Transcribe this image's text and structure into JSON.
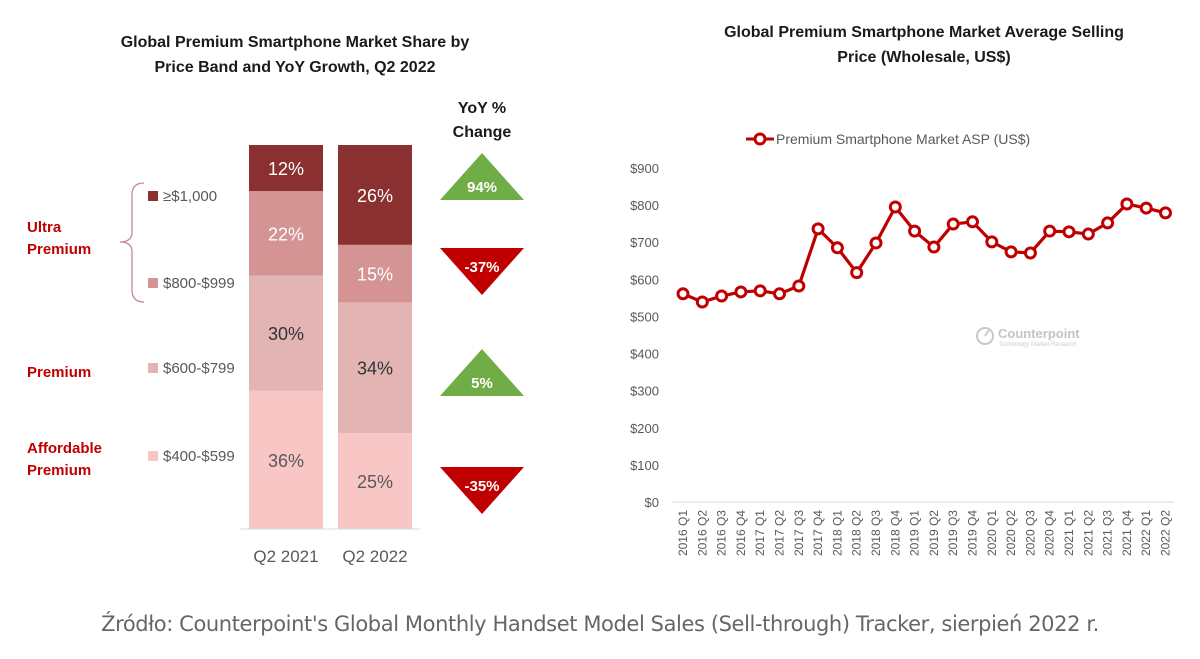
{
  "chart_data": [
    {
      "type": "bar",
      "stacked": true,
      "title": "Global Premium Smartphone Market Share by Price Band and YoY Growth, Q2 2022",
      "title_lines": [
        "Global Premium Smartphone Market Share by",
        "Price Band and YoY Growth, Q2 2022"
      ],
      "categories": [
        "Q2 2021",
        "Q2 2022"
      ],
      "series": [
        {
          "name": "$400-$599",
          "segment": "Affordable Premium",
          "values": [
            36,
            25
          ],
          "color": "#f9c6c6",
          "label_color": "#595959"
        },
        {
          "name": "$600-$799",
          "segment": "Premium",
          "values": [
            30,
            34
          ],
          "color": "#e3b4b4",
          "label_color": "#333333"
        },
        {
          "name": "$800-$999",
          "segment": "Ultra Premium",
          "values": [
            22,
            15
          ],
          "color": "#d49494",
          "label_color": "#ffffff"
        },
        {
          "name": "≥$1,000",
          "segment": "Ultra Premium",
          "values": [
            12,
            26
          ],
          "color": "#8b3030",
          "label_color": "#ffffff"
        }
      ],
      "value_suffix": "%",
      "yoy_header": [
        "YoY %",
        "Change"
      ],
      "yoy_change": [
        {
          "band": "≥$1,000",
          "value": "94%",
          "direction": "up",
          "color": "#70ad47"
        },
        {
          "band": "$800-$999",
          "value": "-37%",
          "direction": "down",
          "color": "#c00000"
        },
        {
          "band": "$600-$799",
          "value": "5%",
          "direction": "up",
          "color": "#70ad47"
        },
        {
          "band": "$400-$599",
          "value": "-35%",
          "direction": "down",
          "color": "#c00000"
        }
      ],
      "segment_labels": [
        {
          "lines": [
            "Ultra",
            "Premium"
          ],
          "bands": [
            "≥$1,000",
            "$800-$999"
          ]
        },
        {
          "lines": [
            "Premium"
          ],
          "bands": [
            "$600-$799"
          ]
        },
        {
          "lines": [
            "Affordable",
            "Premium"
          ],
          "bands": [
            "$400-$599"
          ]
        }
      ],
      "segment_label_color": "#c00000"
    },
    {
      "type": "line",
      "title": "Global Premium Smartphone Market Average Selling Price (Wholesale, US$)",
      "title_lines": [
        "Global Premium Smartphone Market Average Selling",
        "Price (Wholesale, US$)"
      ],
      "legend": "Premium Smartphone Market ASP (US$)",
      "legend_position": "top-center",
      "x": [
        "2016 Q1",
        "2016 Q2",
        "2016 Q3",
        "2016 Q4",
        "2017 Q1",
        "2017 Q2",
        "2017 Q3",
        "2017 Q4",
        "2018 Q1",
        "2018 Q2",
        "2018 Q3",
        "2018 Q4",
        "2019 Q1",
        "2019 Q2",
        "2019 Q3",
        "2019 Q4",
        "2020 Q1",
        "2020 Q2",
        "2020 Q3",
        "2020 Q4",
        "2021 Q1",
        "2021 Q2",
        "2021 Q3",
        "2021 Q4",
        "2022 Q1",
        "2022 Q2"
      ],
      "series": [
        {
          "name": "Premium Smartphone Market ASP (US$)",
          "color": "#c00000",
          "values": [
            561,
            539,
            555,
            566,
            569,
            561,
            582,
            736,
            685,
            618,
            698,
            795,
            730,
            687,
            749,
            755,
            701,
            674,
            671,
            730,
            728,
            722,
            752,
            803,
            792,
            779
          ]
        }
      ],
      "yticks": [
        "$0",
        "$100",
        "$200",
        "$300",
        "$400",
        "$500",
        "$600",
        "$700",
        "$800",
        "$900"
      ],
      "ylim": [
        0,
        900
      ],
      "grid": false,
      "xlabel": "",
      "ylabel": "",
      "watermark": {
        "name": "Counterpoint",
        "tagline": "Technology Market Research"
      }
    }
  ],
  "caption": "Źródło: Counterpoint's Global Monthly Handset Model Sales (Sell-through) Tracker, sierpień 2022 r."
}
